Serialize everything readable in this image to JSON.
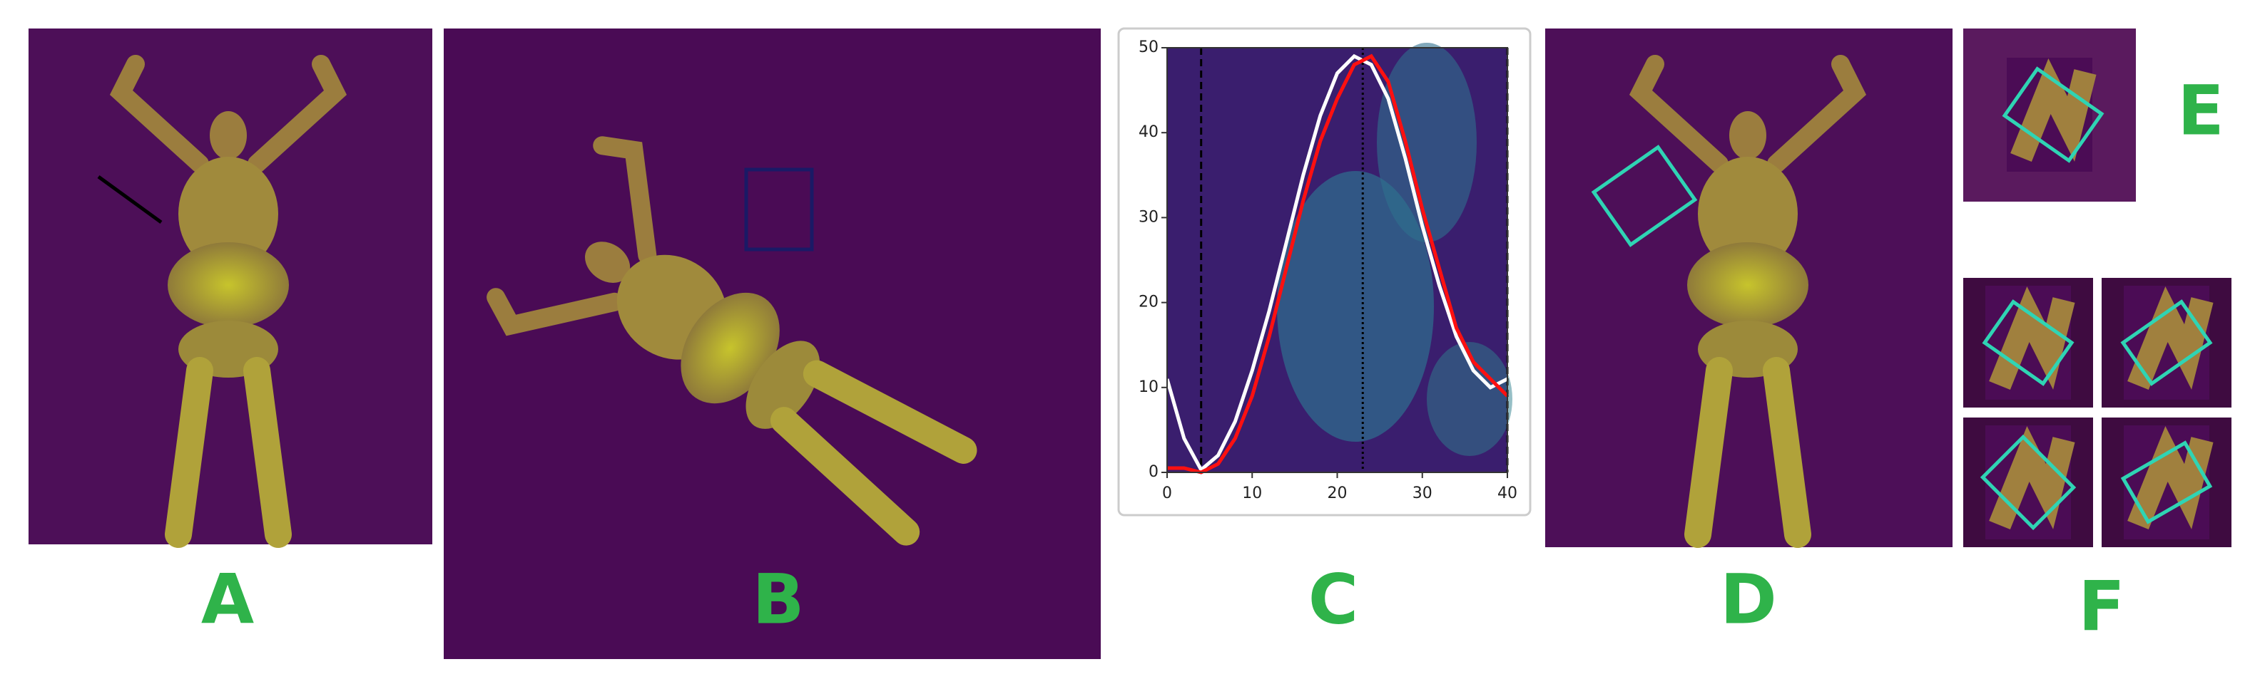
{
  "panels": {
    "a": "A",
    "b": "B",
    "c": "C",
    "d": "D",
    "e": "E",
    "f": "F"
  },
  "chart_data": {
    "type": "line",
    "x": [
      0,
      2,
      4,
      6,
      8,
      10,
      12,
      14,
      16,
      18,
      20,
      22,
      24,
      26,
      28,
      30,
      32,
      34,
      36,
      38,
      40
    ],
    "series": [
      {
        "color": "#ffffff",
        "values": [
          11,
          4,
          0.3,
          2,
          6,
          12,
          19,
          27,
          35,
          42,
          47,
          49,
          48,
          44,
          37,
          29,
          22,
          16,
          12,
          10,
          11
        ]
      },
      {
        "color": "#ff1010",
        "values": [
          0.5,
          0.5,
          0,
          1,
          4,
          9,
          16,
          24,
          32,
          39,
          44,
          48,
          49,
          46,
          39,
          31,
          24,
          17,
          13,
          11,
          9
        ]
      }
    ],
    "vlines": [
      4,
      23,
      40
    ],
    "xlim": [
      0,
      40
    ],
    "ylim": [
      0,
      50
    ],
    "xticks": [
      0,
      10,
      20,
      30,
      40
    ],
    "yticks": [
      0,
      10,
      20,
      30,
      40,
      50
    ]
  }
}
